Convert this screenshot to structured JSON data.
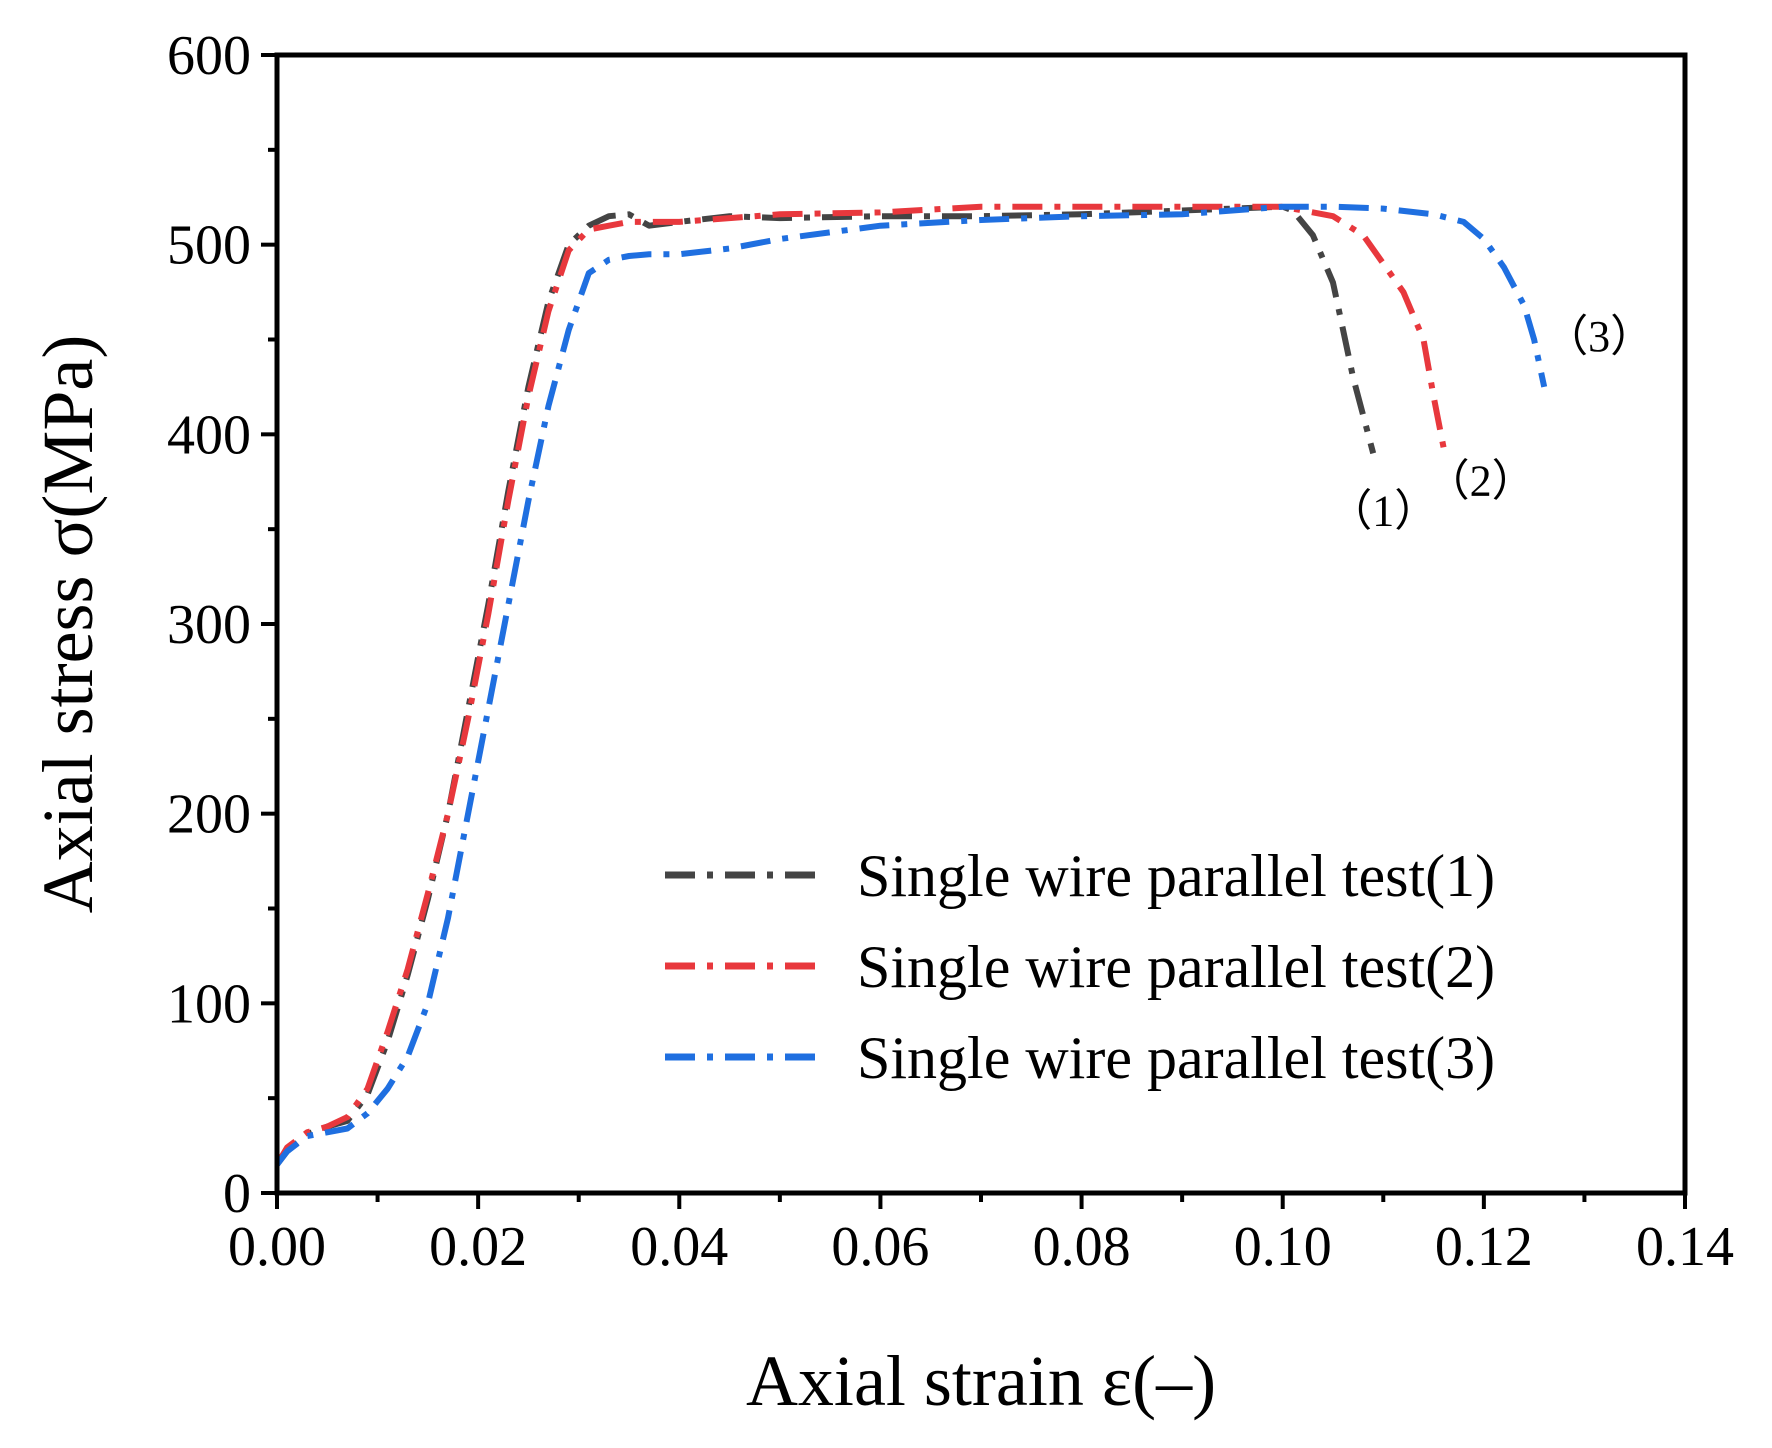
{
  "chart_data": {
    "type": "line",
    "xlabel": "Axial strain ε(–)",
    "ylabel": "Axial stress σ(MPa)",
    "xlim": [
      0,
      0.14
    ],
    "ylim": [
      0,
      600
    ],
    "x_ticks": [
      "0.00",
      "0.02",
      "0.04",
      "0.06",
      "0.08",
      "0.10",
      "0.12",
      "0.14"
    ],
    "y_ticks": [
      "0",
      "100",
      "200",
      "300",
      "400",
      "500",
      "600"
    ],
    "legend_position": "bottom-right",
    "series": [
      {
        "name": "Single wire parallel test(1)",
        "color": "#444444",
        "annotation": "（1）",
        "x": [
          0,
          0.001,
          0.003,
          0.005,
          0.007,
          0.009,
          0.011,
          0.013,
          0.015,
          0.017,
          0.019,
          0.021,
          0.023,
          0.025,
          0.027,
          0.029,
          0.031,
          0.033,
          0.035,
          0.037,
          0.04,
          0.045,
          0.05,
          0.06,
          0.07,
          0.08,
          0.09,
          0.1,
          0.101,
          0.103,
          0.105,
          0.106,
          0.107,
          0.108,
          0.109
        ],
        "y": [
          15,
          22,
          31,
          35,
          38,
          52,
          80,
          115,
          155,
          200,
          255,
          310,
          370,
          425,
          470,
          500,
          510,
          515,
          516,
          510,
          512,
          515,
          514,
          515,
          515,
          516,
          518,
          520,
          518,
          505,
          480,
          455,
          430,
          410,
          390
        ]
      },
      {
        "name": "Single wire parallel test(2)",
        "color": "#e8383d",
        "annotation": "（2）",
        "x": [
          0,
          0.001,
          0.003,
          0.005,
          0.007,
          0.009,
          0.011,
          0.013,
          0.015,
          0.017,
          0.019,
          0.021,
          0.023,
          0.025,
          0.027,
          0.029,
          0.031,
          0.033,
          0.035,
          0.04,
          0.05,
          0.06,
          0.07,
          0.08,
          0.09,
          0.1,
          0.105,
          0.108,
          0.11,
          0.112,
          0.114,
          0.115,
          0.116
        ],
        "y": [
          15,
          24,
          32,
          35,
          40,
          55,
          85,
          118,
          158,
          200,
          250,
          305,
          365,
          420,
          465,
          497,
          508,
          510,
          512,
          512,
          516,
          517,
          520,
          520,
          520,
          520,
          515,
          505,
          490,
          475,
          450,
          420,
          393
        ]
      },
      {
        "name": "Single wire parallel test(3)",
        "color": "#1f6fe0",
        "annotation": "（3）",
        "x": [
          0,
          0.001,
          0.003,
          0.005,
          0.007,
          0.009,
          0.011,
          0.013,
          0.015,
          0.017,
          0.019,
          0.021,
          0.023,
          0.025,
          0.027,
          0.029,
          0.031,
          0.033,
          0.035,
          0.037,
          0.04,
          0.045,
          0.05,
          0.06,
          0.07,
          0.08,
          0.09,
          0.1,
          0.105,
          0.11,
          0.115,
          0.118,
          0.12,
          0.122,
          0.124,
          0.125,
          0.126
        ],
        "y": [
          15,
          22,
          30,
          32,
          34,
          42,
          55,
          72,
          100,
          145,
          200,
          255,
          310,
          365,
          415,
          455,
          485,
          492,
          494,
          495,
          495,
          498,
          503,
          510,
          513,
          515,
          516,
          520,
          520,
          519,
          516,
          512,
          503,
          488,
          468,
          450,
          425
        ]
      }
    ]
  }
}
